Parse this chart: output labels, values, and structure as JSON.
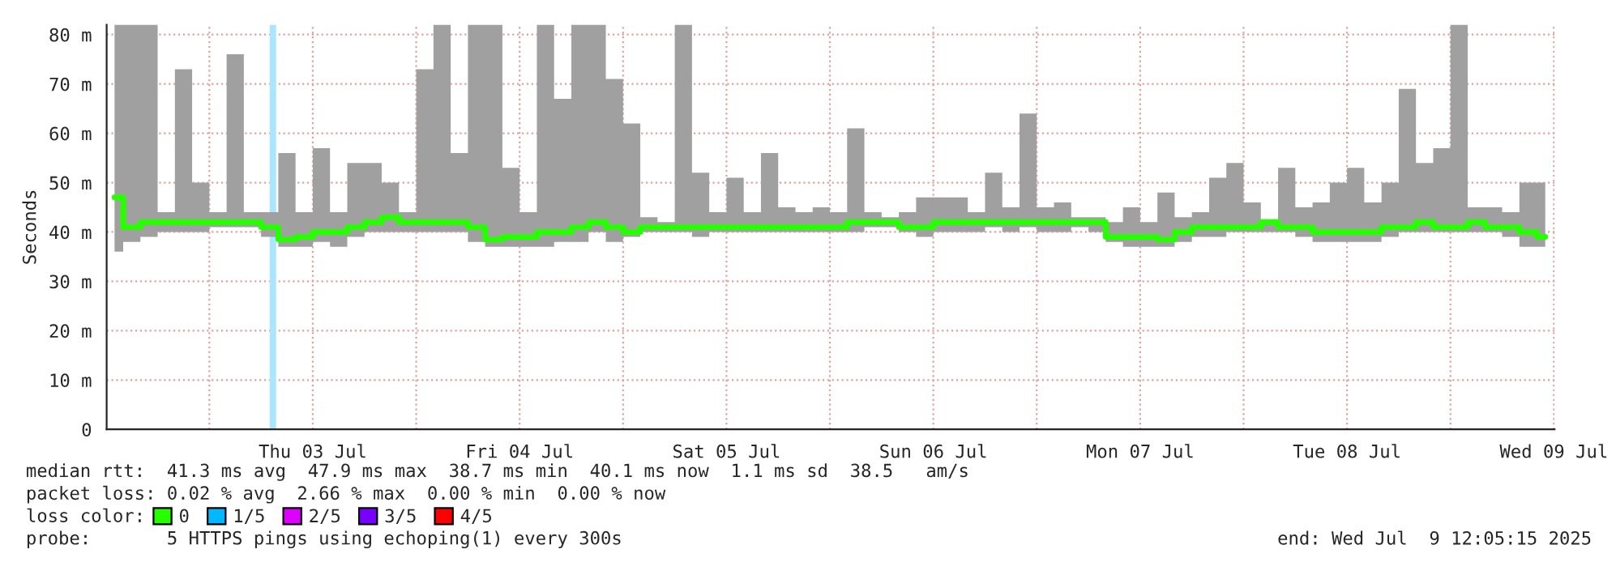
{
  "chart_data": {
    "type": "step",
    "ylabel": "Seconds",
    "legend_title": "loss color:",
    "legend": "bottom left",
    "grid": true,
    "x": [
      "2025-07-02T13:00",
      "2025-07-02T15:00",
      "2025-07-02T17:00",
      "2025-07-02T19:00",
      "2025-07-02T21:00",
      "2025-07-02T23:00",
      "2025-07-03T01:00",
      "2025-07-03T03:00",
      "2025-07-03T05:00",
      "2025-07-03T07:00",
      "2025-07-03T09:00",
      "2025-07-03T11:00",
      "2025-07-03T13:00",
      "2025-07-03T15:00",
      "2025-07-03T17:00",
      "2025-07-03T19:00",
      "2025-07-03T21:00",
      "2025-07-03T23:00",
      "2025-07-04T01:00",
      "2025-07-04T03:00",
      "2025-07-04T05:00",
      "2025-07-04T07:00",
      "2025-07-04T09:00",
      "2025-07-04T11:00",
      "2025-07-04T13:00",
      "2025-07-04T15:00",
      "2025-07-04T17:00",
      "2025-07-04T19:00",
      "2025-07-04T21:00",
      "2025-07-04T23:00",
      "2025-07-05T01:00",
      "2025-07-05T03:00",
      "2025-07-05T05:00",
      "2025-07-05T07:00",
      "2025-07-05T09:00",
      "2025-07-05T11:00",
      "2025-07-05T13:00",
      "2025-07-05T15:00",
      "2025-07-05T17:00",
      "2025-07-05T19:00",
      "2025-07-05T21:00",
      "2025-07-05T23:00",
      "2025-07-06T01:00",
      "2025-07-06T03:00",
      "2025-07-06T05:00",
      "2025-07-06T07:00",
      "2025-07-06T09:00",
      "2025-07-06T11:00",
      "2025-07-06T13:00",
      "2025-07-06T15:00",
      "2025-07-06T17:00",
      "2025-07-06T19:00",
      "2025-07-06T21:00",
      "2025-07-06T23:00",
      "2025-07-07T01:00",
      "2025-07-07T03:00",
      "2025-07-07T05:00",
      "2025-07-07T07:00",
      "2025-07-07T09:00",
      "2025-07-07T11:00",
      "2025-07-07T13:00",
      "2025-07-07T15:00",
      "2025-07-07T17:00",
      "2025-07-07T19:00",
      "2025-07-07T21:00",
      "2025-07-07T23:00",
      "2025-07-08T01:00",
      "2025-07-08T03:00",
      "2025-07-08T05:00",
      "2025-07-08T07:00",
      "2025-07-08T09:00",
      "2025-07-08T11:00",
      "2025-07-08T13:00",
      "2025-07-08T15:00",
      "2025-07-08T17:00",
      "2025-07-08T19:00",
      "2025-07-08T21:00",
      "2025-07-08T23:00",
      "2025-07-09T01:00",
      "2025-07-09T03:00",
      "2025-07-09T05:00",
      "2025-07-09T07:00",
      "2025-07-09T09:00",
      "2025-07-09T11:00"
    ],
    "series": [
      {
        "name": "0",
        "color": "#26ff00",
        "values": [
          47,
          41,
          42,
          42,
          42,
          42,
          42,
          42,
          42,
          41,
          38.5,
          39,
          40,
          40,
          41,
          42,
          43,
          42,
          42,
          42,
          42,
          41,
          38.5,
          39,
          39,
          40,
          40,
          41,
          42,
          41,
          40,
          41,
          41,
          41,
          41,
          41,
          41,
          41,
          41,
          41,
          41,
          41,
          41,
          42,
          42,
          42,
          41,
          41,
          42,
          42,
          42,
          42,
          42,
          42,
          42,
          42,
          42,
          42,
          39,
          39,
          39,
          38.5,
          40,
          41,
          41,
          41,
          41,
          42,
          41,
          41,
          40,
          40,
          40,
          40,
          41,
          41,
          42,
          41,
          41,
          42,
          41,
          41,
          40,
          39
        ],
        "lower": [
          36,
          38,
          39,
          40,
          40,
          40,
          41,
          41,
          41,
          39,
          37,
          37,
          38,
          37,
          39,
          40,
          40,
          40,
          40,
          40,
          40,
          38,
          37,
          37,
          37,
          37,
          38,
          38,
          40,
          38,
          39,
          40,
          40,
          40,
          39,
          40,
          40,
          40,
          40,
          40,
          40,
          40,
          40,
          40,
          41,
          41,
          40,
          39,
          40,
          40,
          40,
          41,
          40,
          41,
          40,
          40,
          41,
          40,
          38,
          37,
          37,
          37,
          38,
          39,
          39,
          40,
          40,
          40,
          40,
          39,
          38,
          38,
          38,
          38,
          39,
          40,
          40,
          40,
          40,
          40,
          40,
          39,
          37,
          37
        ],
        "upper": [
          82,
          82,
          82,
          44,
          73,
          50,
          44,
          76,
          44,
          44,
          56,
          44,
          57,
          44,
          54,
          54,
          50,
          44,
          73,
          82,
          56,
          82,
          82,
          53,
          44,
          82,
          67,
          82,
          82,
          71,
          62,
          43,
          42,
          82,
          52,
          44,
          51,
          44,
          56,
          45,
          44,
          45,
          44,
          61,
          44,
          43,
          44,
          47,
          47,
          47,
          44,
          52,
          45,
          64,
          45,
          46,
          43,
          43,
          42,
          45,
          42,
          48,
          43,
          44,
          51,
          54,
          46,
          42,
          53,
          45,
          46,
          50,
          53,
          46,
          50,
          69,
          54,
          57,
          82,
          45,
          45,
          44,
          50,
          50
        ]
      },
      {
        "name": "1/5",
        "color": "#00b8ff",
        "values": [
          null,
          null,
          null,
          null,
          null,
          null,
          null,
          null,
          null,
          null,
          null,
          null,
          null,
          null,
          null,
          null,
          null,
          null,
          null,
          null,
          null,
          null,
          null,
          null,
          null,
          null,
          null,
          null,
          null,
          null,
          null,
          null,
          null,
          null,
          null,
          null,
          null,
          null,
          null,
          null,
          null,
          null,
          null,
          null,
          null,
          null,
          null,
          null,
          null,
          null,
          null,
          null,
          null,
          null,
          null,
          null,
          null,
          null,
          null,
          null,
          null,
          null,
          null,
          null,
          null,
          null,
          null,
          null,
          null,
          null,
          null,
          null,
          null,
          null,
          null,
          null,
          null,
          null,
          null,
          null,
          null,
          null,
          null,
          null
        ]
      },
      {
        "name": "2/5",
        "color": "#dd00ff",
        "values": [
          null,
          null,
          null,
          null,
          null,
          null,
          null,
          null,
          null,
          null,
          null,
          null,
          null,
          null,
          null,
          null,
          null,
          null,
          null,
          null,
          null,
          null,
          null,
          null,
          null,
          null,
          null,
          null,
          null,
          null,
          null,
          null,
          null,
          null,
          null,
          null,
          null,
          null,
          null,
          null,
          null,
          null,
          null,
          null,
          null,
          null,
          null,
          null,
          null,
          null,
          null,
          null,
          null,
          null,
          null,
          null,
          null,
          null,
          null,
          null,
          null,
          null,
          null,
          null,
          null,
          null,
          null,
          null,
          null,
          null,
          null,
          null,
          null,
          null,
          null,
          null,
          null,
          null,
          null,
          null,
          null,
          null,
          null,
          null
        ]
      },
      {
        "name": "3/5",
        "color": "#7700ff",
        "values": [
          null,
          null,
          null,
          null,
          null,
          null,
          null,
          null,
          null,
          null,
          null,
          null,
          null,
          null,
          null,
          null,
          null,
          null,
          null,
          null,
          null,
          null,
          null,
          null,
          null,
          null,
          null,
          null,
          null,
          null,
          null,
          null,
          null,
          null,
          null,
          null,
          null,
          null,
          null,
          null,
          null,
          null,
          null,
          null,
          null,
          null,
          null,
          null,
          null,
          null,
          null,
          null,
          null,
          null,
          null,
          null,
          null,
          null,
          null,
          null,
          null,
          null,
          null,
          null,
          null,
          null,
          null,
          null,
          null,
          null,
          null,
          null,
          null,
          null,
          null,
          null,
          null,
          null,
          null,
          null,
          null,
          null,
          null,
          null
        ]
      },
      {
        "name": "4/5",
        "color": "#ff0000",
        "values": [
          null,
          null,
          null,
          null,
          null,
          null,
          null,
          null,
          null,
          null,
          null,
          null,
          null,
          null,
          null,
          null,
          null,
          null,
          null,
          null,
          null,
          null,
          null,
          null,
          null,
          null,
          null,
          null,
          null,
          null,
          null,
          null,
          null,
          null,
          null,
          null,
          null,
          null,
          null,
          null,
          null,
          null,
          null,
          null,
          null,
          null,
          null,
          null,
          null,
          null,
          null,
          null,
          null,
          null,
          null,
          null,
          null,
          null,
          null,
          null,
          null,
          null,
          null,
          null,
          null,
          null,
          null,
          null,
          null,
          null,
          null,
          null,
          null,
          null,
          null,
          null,
          null,
          null,
          null,
          null,
          null,
          null,
          null,
          null
        ]
      }
    ],
    "bands": [
      {
        "axis": "x",
        "from": "2025-07-03T07:00",
        "to": "2025-07-03T07:45",
        "color": "#aae6ff"
      }
    ],
    "xlim": [
      "2025-07-02T12:05",
      "2025-07-09T12:05"
    ],
    "xticks": [
      {
        "value": "2025-07-03T00:00",
        "label": null
      },
      {
        "value": "2025-07-03T12:00",
        "label": "Thu 03 Jul"
      },
      {
        "value": "2025-07-04T00:00",
        "label": null
      },
      {
        "value": "2025-07-04T12:00",
        "label": "Fri 04 Jul"
      },
      {
        "value": "2025-07-05T00:00",
        "label": null
      },
      {
        "value": "2025-07-05T12:00",
        "label": "Sat 05 Jul"
      },
      {
        "value": "2025-07-06T00:00",
        "label": null
      },
      {
        "value": "2025-07-06T12:00",
        "label": "Sun 06 Jul"
      },
      {
        "value": "2025-07-07T00:00",
        "label": null
      },
      {
        "value": "2025-07-07T12:00",
        "label": "Mon 07 Jul"
      },
      {
        "value": "2025-07-08T00:00",
        "label": null
      },
      {
        "value": "2025-07-08T12:00",
        "label": "Tue 08 Jul"
      },
      {
        "value": "2025-07-09T00:00",
        "label": null
      },
      {
        "value": "2025-07-09T12:00",
        "label": "Wed 09 Jul"
      }
    ],
    "ylim": [
      0,
      82
    ],
    "yticks": [
      0,
      {
        "value": 10,
        "label": "10 m"
      },
      {
        "value": 20,
        "label": "20 m"
      },
      {
        "value": 30,
        "label": "30 m"
      },
      {
        "value": 40,
        "label": "40 m"
      },
      {
        "value": 50,
        "label": "50 m"
      },
      {
        "value": 60,
        "label": "60 m"
      },
      {
        "value": 70,
        "label": "70 m"
      },
      {
        "value": 80,
        "label": "80 m"
      }
    ],
    "annotations": [
      "median rtt:  41.3 ms avg  47.9 ms max  38.7 ms min  40.1 ms now  1.1 ms sd  38.5   am/s",
      "packet loss: 0.02 % avg  2.66 % max  0.00 % min  0.00 % now",
      "probe:       5 HTTPS pings using echoping(1) every 300s",
      "end: Wed Jul  9 12:05:15 2025"
    ]
  }
}
